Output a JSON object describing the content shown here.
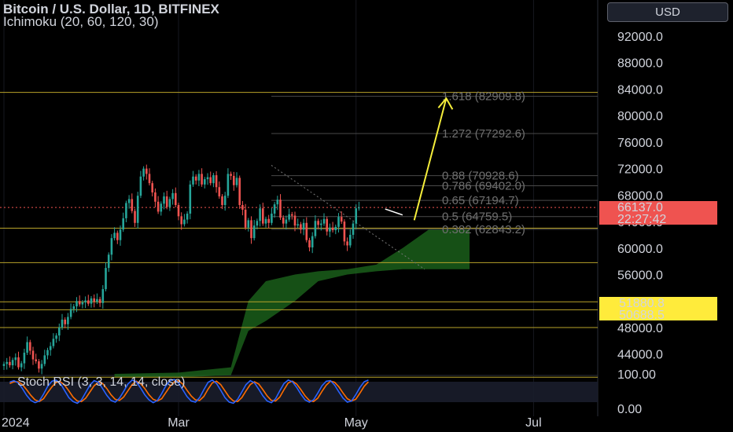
{
  "header": {
    "title": "Bitcoin / U.S. Dollar, 1D, BITFINEX",
    "indicator": "Ichimoku (20, 60, 120, 30)",
    "currency_button": "USD"
  },
  "colors": {
    "background": "#000000",
    "candle_up": "#26a69a",
    "candle_down": "#ef5350",
    "cloud": "#1e6b1e",
    "horizontal_levels": "#b8a32a",
    "projection_arrow": "#f5ee3b",
    "price_tag": "#ef5350",
    "level_tag": "#ffeb3b",
    "stoch_k": "#2962ff",
    "stoch_d": "#ff6d00"
  },
  "price_tag": {
    "price": "66137.0",
    "countdown": "22:27:42"
  },
  "level_tags": [
    "51880.8",
    "50688.5"
  ],
  "chart_data": {
    "type": "candlestick",
    "symbol": "Bitcoin / U.S. Dollar",
    "interval": "1D",
    "exchange": "BITFINEX",
    "y_axis": {
      "range": [
        40000,
        95000
      ],
      "ticks": [
        "92000.0",
        "88000.0",
        "84000.0",
        "80000.0",
        "76000.0",
        "72000.0",
        "68000.0",
        "64000.0",
        "60000.0",
        "56000.0",
        "48000.0",
        "44000.0"
      ],
      "tick_values": [
        92000,
        88000,
        84000,
        80000,
        76000,
        72000,
        68000,
        64000,
        60000,
        56000,
        48000,
        44000
      ]
    },
    "x_axis": {
      "labels": [
        "2024",
        "Mar",
        "May",
        "Jul"
      ],
      "label_days": [
        0,
        60,
        121,
        182
      ]
    },
    "fib_levels": [
      {
        "ratio": "1.618",
        "price": 82909.8
      },
      {
        "ratio": "1.272",
        "price": 77292.6
      },
      {
        "ratio": "0.88",
        "price": 70928.6
      },
      {
        "ratio": "0.786",
        "price": 69402.0
      },
      {
        "ratio": "0.65",
        "price": 67194.7
      },
      {
        "ratio": "0.5",
        "price": 64759.5
      },
      {
        "ratio": "0.382",
        "price": 62843.2
      }
    ],
    "horizontal_levels": [
      83500,
      63000,
      57800,
      51880.8,
      50688.5,
      48000,
      40500
    ],
    "current_price": 66137.0,
    "projection": [
      {
        "day": 137,
        "price": 65000
      },
      {
        "day": 141,
        "price": 64200
      },
      {
        "day": 152,
        "price": 82600
      }
    ],
    "closes": [
      42500,
      42800,
      42300,
      43100,
      43500,
      42000,
      42600,
      44200,
      45800,
      44500,
      43200,
      42900,
      41800,
      42500,
      43800,
      44600,
      45200,
      46300,
      46800,
      48000,
      49200,
      48500,
      49600,
      50800,
      51200,
      52000,
      51500,
      51800,
      52100,
      51600,
      52400,
      51900,
      52300,
      51700,
      53800,
      57000,
      59000,
      61500,
      62300,
      61200,
      62800,
      64500,
      66800,
      67400,
      65600,
      63800,
      67900,
      70800,
      72000,
      71200,
      69800,
      68400,
      67000,
      65500,
      66700,
      67800,
      66200,
      67400,
      68300,
      66500,
      64800,
      63600,
      64300,
      65200,
      69600,
      70800,
      70200,
      71200,
      69600,
      70400,
      70700,
      69800,
      71000,
      69200,
      67800,
      66500,
      67900,
      71200,
      70900,
      69500,
      70600,
      66500,
      65800,
      63100,
      64200,
      61500,
      63400,
      64100,
      66000,
      63700,
      64400,
      63800,
      65200,
      66600,
      67300,
      64600,
      63700,
      64300,
      65100,
      64900,
      63400,
      63600,
      62800,
      63800,
      61200,
      60100,
      61800,
      64100,
      63500,
      63700,
      64400,
      62500,
      63100,
      62700,
      63200,
      64700,
      64000,
      61000,
      60400,
      62000,
      63700,
      66000,
      66137
    ],
    "stoch_rsi": {
      "label": "Stoch RSI (3, 3, 14, 14, close)",
      "range": [
        0,
        100
      ],
      "ticks": [
        "100.00",
        "0.00"
      ],
      "k": [
        85,
        90,
        82,
        62,
        38,
        20,
        12,
        18,
        42,
        70,
        88,
        92,
        80,
        55,
        30,
        16,
        10,
        22,
        48,
        74,
        90,
        84,
        62,
        38,
        20,
        14,
        28,
        52,
        78,
        92,
        86,
        64,
        40,
        22,
        12,
        20,
        44,
        72,
        90,
        94,
        82,
        58,
        34,
        18,
        14,
        30,
        58,
        84,
        92,
        80,
        56,
        30,
        14,
        10,
        24,
        50,
        76,
        90,
        82,
        60,
        36,
        18,
        12,
        26,
        54,
        80,
        92,
        86,
        66,
        42,
        22,
        14,
        22,
        46,
        72,
        88,
        90,
        74,
        50,
        28,
        14,
        18,
        40,
        66,
        86,
        92
      ],
      "d": [
        80,
        86,
        86,
        76,
        58,
        38,
        22,
        16,
        26,
        48,
        68,
        84,
        86,
        74,
        54,
        32,
        18,
        16,
        28,
        50,
        72,
        84,
        80,
        62,
        40,
        24,
        20,
        32,
        54,
        76,
        88,
        80,
        62,
        40,
        24,
        18,
        26,
        48,
        70,
        86,
        90,
        78,
        56,
        36,
        22,
        20,
        34,
        60,
        82,
        88,
        76,
        54,
        32,
        18,
        16,
        30,
        54,
        76,
        86,
        78,
        58,
        36,
        20,
        18,
        32,
        58,
        82,
        88,
        78,
        58,
        36,
        20,
        16,
        28,
        52,
        74,
        88,
        84,
        68,
        46,
        26,
        18,
        24,
        46,
        70,
        86
      ]
    }
  }
}
